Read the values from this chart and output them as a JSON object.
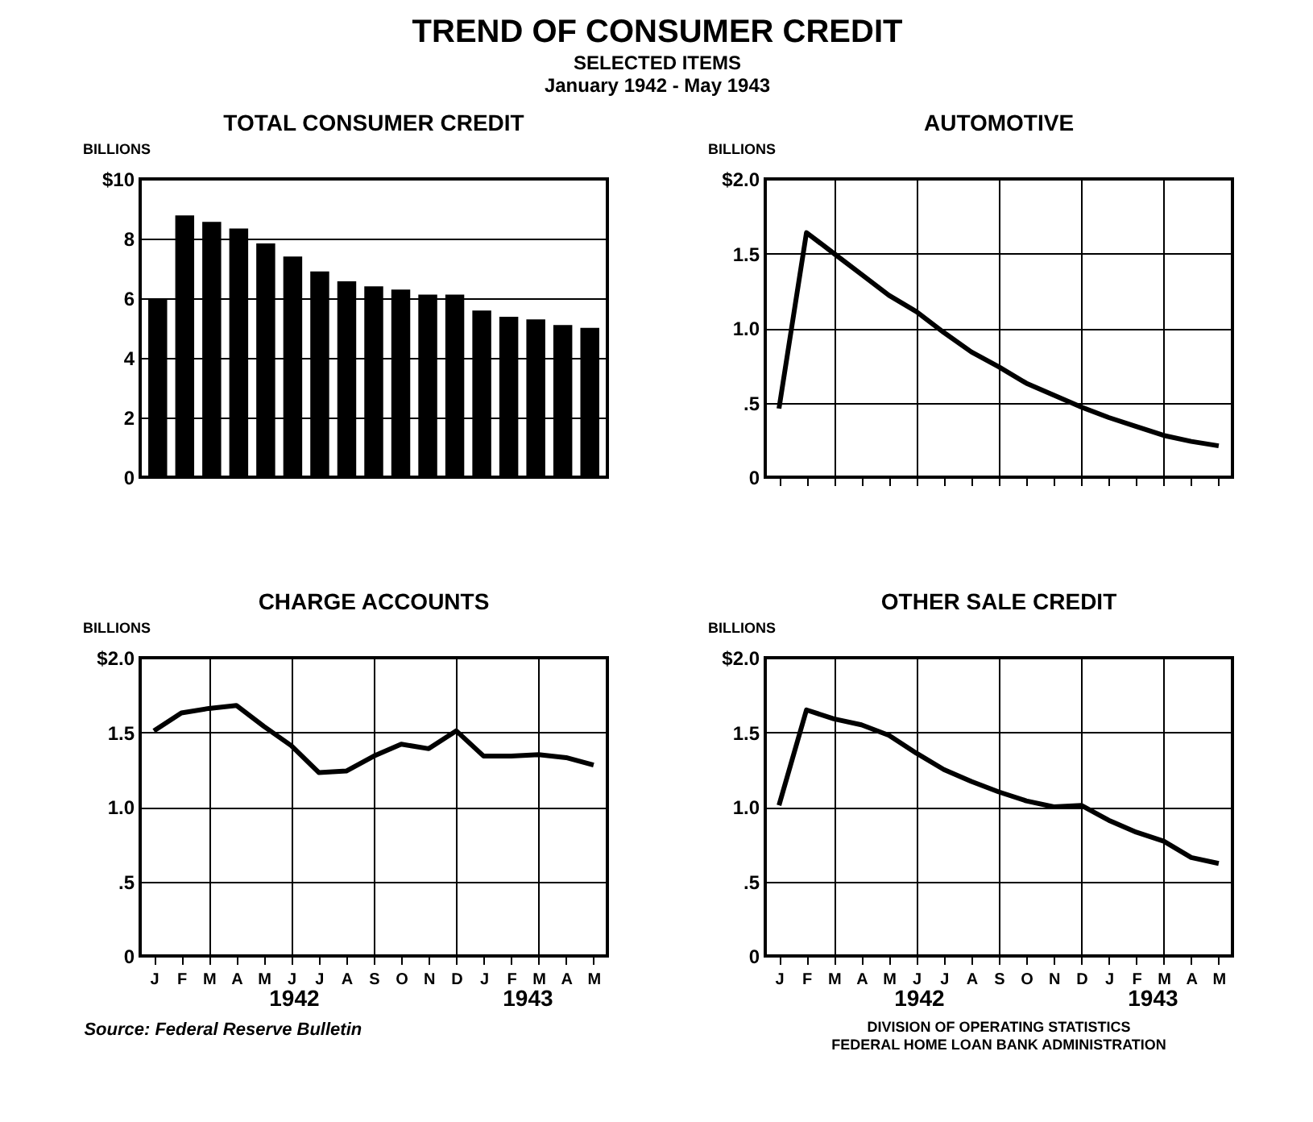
{
  "chart_data": [
    {
      "type": "bar",
      "title": "TOTAL CONSUMER CREDIT",
      "ylabel": "BILLIONS",
      "categories": [
        null,
        null,
        null,
        null,
        null,
        null,
        null,
        null,
        null,
        null,
        null,
        null,
        null,
        null,
        null,
        null,
        null
      ],
      "grid": "y",
      "series": [
        {
          "color": "#000000",
          "values": [
            5.96,
            8.78,
            8.56,
            8.34,
            7.84,
            7.4,
            6.9,
            6.57,
            6.4,
            6.29,
            6.12,
            6.12,
            5.59,
            5.38,
            5.29,
            5.1,
            5.01
          ]
        }
      ],
      "ylim": [
        0,
        10
      ],
      "yticks": [
        0,
        2,
        4,
        6,
        8,
        {
          "value": 10,
          "label": "$10"
        }
      ]
    },
    {
      "type": "line",
      "title": "AUTOMOTIVE",
      "ylabel": "BILLIONS",
      "categories": [
        null,
        null,
        null,
        null,
        null,
        null,
        null,
        null,
        null,
        null,
        null,
        null,
        null,
        null,
        null,
        null,
        null
      ],
      "grid": true,
      "marker": "none",
      "series": [
        {
          "color": "#000000",
          "values": [
            0.46,
            1.64,
            1.5,
            1.36,
            1.22,
            1.11,
            0.97,
            0.84,
            0.74,
            0.63,
            0.55,
            0.47,
            0.4,
            0.34,
            0.28,
            0.24,
            0.21
          ]
        }
      ],
      "ylim": [
        0,
        2
      ],
      "yticks": [
        0,
        {
          "value": 0.5,
          "label": ".5"
        },
        {
          "value": 1,
          "label": "1.0"
        },
        1.5,
        {
          "value": 2,
          "label": "$2.0"
        }
      ]
    },
    {
      "type": "line",
      "title": "CHARGE ACCOUNTS",
      "ylabel": "BILLIONS",
      "categories": [
        "J",
        "F",
        "M",
        "A",
        "M",
        "J",
        "J",
        "A",
        "S",
        "O",
        "N",
        "D",
        "J",
        "F",
        "M",
        "A",
        "M"
      ],
      "grid": true,
      "marker": "none",
      "series": [
        {
          "color": "#000000",
          "values": [
            1.51,
            1.63,
            1.66,
            1.68,
            1.54,
            1.41,
            1.23,
            1.24,
            1.34,
            1.42,
            1.39,
            1.51,
            1.34,
            1.34,
            1.35,
            1.33,
            1.28
          ]
        }
      ],
      "ylim": [
        0,
        2
      ],
      "yticks": [
        0,
        {
          "value": 0.5,
          "label": ".5"
        },
        {
          "value": 1,
          "label": "1.0"
        },
        1.5,
        {
          "value": 2,
          "label": "$2.0"
        }
      ],
      "annotations": [
        "1942",
        "1943",
        "Source: Federal Reserve Bulletin"
      ]
    },
    {
      "type": "line",
      "title": "OTHER SALE CREDIT",
      "ylabel": "BILLIONS",
      "categories": [
        "J",
        "F",
        "M",
        "A",
        "M",
        "J",
        "J",
        "A",
        "S",
        "O",
        "N",
        "D",
        "J",
        "F",
        "M",
        "A",
        "M"
      ],
      "grid": true,
      "marker": "none",
      "series": [
        {
          "color": "#000000",
          "values": [
            1.01,
            1.65,
            1.59,
            1.55,
            1.48,
            1.36,
            1.25,
            1.17,
            1.1,
            1.04,
            1.0,
            1.01,
            0.91,
            0.83,
            0.77,
            0.66,
            0.62
          ]
        }
      ],
      "ylim": [
        0,
        2
      ],
      "yticks": [
        0,
        {
          "value": 0.5,
          "label": ".5"
        },
        {
          "value": 1,
          "label": "1.0"
        },
        1.5,
        {
          "value": 2,
          "label": "$2.0"
        }
      ],
      "annotations": [
        "1942",
        "1943",
        "DIVISION OF OPERATING STATISTICS",
        "FEDERAL HOME LOAN BANK ADMINISTRATION"
      ]
    },
    {
      "type": "other",
      "title": "TREND OF CONSUMER CREDIT",
      "subtitle": "SELECTED ITEMS",
      "annotations": [
        "January 1942 - May 1943"
      ]
    }
  ]
}
